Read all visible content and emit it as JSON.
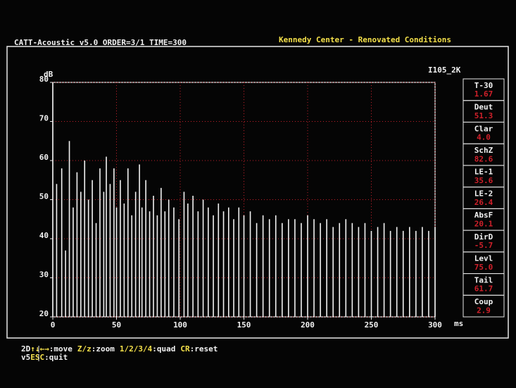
{
  "header": {
    "program": "CATT-Acoustic v5.0 ORDER=3/1 TIME=300",
    "project": "Kennedy Center - Renovated Conditions"
  },
  "chart_data": {
    "type": "stem",
    "subtitle": "I105_2K",
    "y_label": "dB",
    "x_label": "ms",
    "x": [
      0,
      3,
      7,
      10,
      13,
      16,
      19,
      22,
      25,
      28,
      31,
      34,
      37,
      40,
      42,
      45,
      48,
      50,
      53,
      56,
      59,
      62,
      65,
      68,
      70,
      73,
      76,
      79,
      82,
      85,
      88,
      91,
      95,
      99,
      103,
      106,
      110,
      114,
      118,
      122,
      126,
      130,
      134,
      138,
      142,
      146,
      150,
      155,
      160,
      165,
      170,
      175,
      180,
      185,
      190,
      195,
      200,
      205,
      210,
      215,
      220,
      225,
      230,
      235,
      240,
      245,
      250,
      255,
      260,
      265,
      270,
      275,
      280,
      285,
      290,
      295,
      300
    ],
    "values": [
      80,
      54,
      58,
      37,
      65,
      48,
      57,
      52,
      60,
      50,
      55,
      44,
      58,
      52,
      61,
      54,
      58,
      48,
      55,
      49,
      58,
      46,
      52,
      59,
      48,
      55,
      47,
      51,
      46,
      53,
      47,
      50,
      48,
      45,
      52,
      49,
      51,
      47,
      50,
      48,
      46,
      49,
      47,
      48,
      45,
      48,
      46,
      47,
      44,
      46,
      45,
      46,
      44,
      45,
      45,
      44,
      46,
      45,
      44,
      45,
      43,
      44,
      45,
      44,
      43,
      44,
      42,
      43,
      44,
      42,
      43,
      42,
      43,
      42,
      43,
      42,
      43
    ],
    "color": "#f2f2f2",
    "xlim": [
      0,
      300
    ],
    "ylim": [
      20,
      80
    ],
    "xticks": [
      0,
      50,
      100,
      150,
      200,
      250,
      300
    ],
    "yticks": [
      20,
      30,
      40,
      50,
      60,
      70,
      80
    ],
    "grid": true,
    "grid_color": "#c0202a"
  },
  "parameters": [
    {
      "name": "T-30",
      "value": "1.67"
    },
    {
      "name": "Deut",
      "value": "51.3"
    },
    {
      "name": "Clar",
      "value": "4.0"
    },
    {
      "name": "SchZ",
      "value": "82.6"
    },
    {
      "name": "LE-1",
      "value": "35.6"
    },
    {
      "name": "LE-2",
      "value": "26.4"
    },
    {
      "name": "AbsF",
      "value": "20.1"
    },
    {
      "name": "DirD",
      "value": "-5.7"
    },
    {
      "name": "Levl",
      "value": "75.0"
    },
    {
      "name": "Tail",
      "value": "61.7"
    },
    {
      "name": "Coup",
      "value": "2.9"
    }
  ],
  "footer": {
    "rows": [
      {
        "mode": "2D",
        "items": [
          {
            "key": "↑↓←→",
            "action": ":move"
          },
          {
            "key": "Z/z",
            "action": ":zoom"
          },
          {
            "key": "1/2/3/4",
            "action": ":quad"
          },
          {
            "key": "CR",
            "action": ":reset"
          }
        ]
      },
      {
        "mode": "v5",
        "items": [
          {
            "key": "ESC",
            "action": ":quit"
          }
        ]
      }
    ]
  }
}
